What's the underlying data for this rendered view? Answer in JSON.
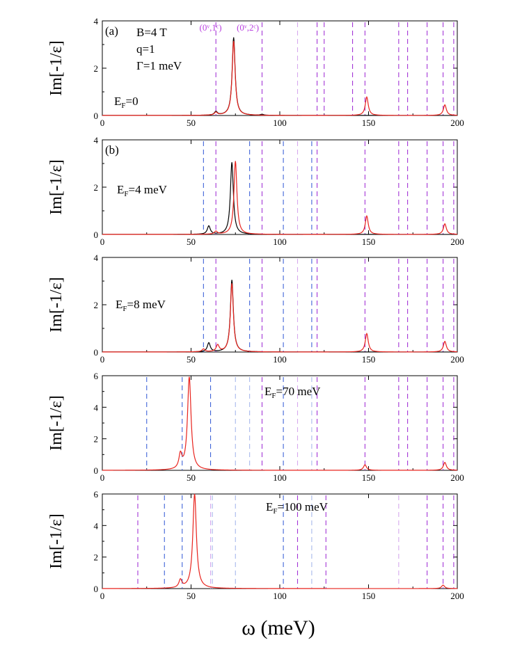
{
  "chart_data": {
    "type": "line",
    "xlabel": "ω (meV)",
    "ylabel": "Im[-1/ε]",
    "xlim": [
      0,
      200
    ],
    "xticks": [
      0,
      50,
      100,
      150,
      200
    ],
    "colors": {
      "black_curve": "#000000",
      "red_curve": "#e8231d",
      "blue_lines": "#3f63d8",
      "light_blue_lines": "#a7b8ec",
      "purple_lines": "#a335d6",
      "light_purple_lines": "#d6a9ee",
      "peak_label": "#b93fe0"
    },
    "panels": [
      {
        "panel_label": "(a)",
        "ylim": [
          0,
          4
        ],
        "yticks": [
          0,
          2,
          4
        ],
        "annotations": [
          "B=4 T",
          "q=1",
          "Γ=1 meV"
        ],
        "ef_label": {
          "main": "E",
          "sub": "F",
          "rest": "=0"
        },
        "peak_labels": [
          {
            "text": "(0ᵛ,1ᶜ)",
            "x": 61
          },
          {
            "text": "(0ᵛ,2ᶜ)",
            "x": 82
          }
        ],
        "lines_blue": [],
        "lines_light_blue": [],
        "lines_purple": [
          64,
          90,
          121,
          125,
          141,
          148,
          167,
          172,
          183,
          192,
          198
        ],
        "lines_light_purple": [
          110
        ],
        "black_peaks": [
          [
            64,
            0.15,
            1.0
          ],
          [
            74,
            3.3,
            1.0
          ],
          [
            90,
            0.04,
            1.0
          ]
        ],
        "red_peaks": [
          [
            64,
            0.12,
            1.0
          ],
          [
            74,
            3.15,
            1.0
          ],
          [
            149,
            0.78,
            1.0
          ],
          [
            193,
            0.45,
            1.0
          ]
        ]
      },
      {
        "panel_label": "(b)",
        "ylim": [
          0,
          4
        ],
        "yticks": [
          0,
          2,
          4
        ],
        "annotations": [],
        "ef_label": {
          "main": "E",
          "sub": "F",
          "rest": "=4 meV"
        },
        "peak_labels": [],
        "lines_blue": [
          57,
          83,
          102,
          118
        ],
        "lines_light_blue": [],
        "lines_purple": [
          64,
          90,
          121,
          148,
          167,
          172,
          183,
          192,
          198
        ],
        "lines_light_purple": [
          110
        ],
        "black_peaks": [
          [
            60,
            0.35,
            1.0
          ],
          [
            73,
            3.05,
            1.0
          ]
        ],
        "red_peaks": [
          [
            64,
            0.12,
            1.0
          ],
          [
            75,
            3.1,
            1.0
          ],
          [
            149,
            0.78,
            1.0
          ],
          [
            193,
            0.45,
            1.0
          ]
        ]
      },
      {
        "panel_label": "",
        "ylim": [
          0,
          4
        ],
        "yticks": [
          0,
          2,
          4
        ],
        "annotations": [],
        "ef_label": {
          "main": "E",
          "sub": "F",
          "rest": "=8 meV"
        },
        "peak_labels": [],
        "lines_blue": [
          57,
          83,
          102,
          118
        ],
        "lines_light_blue": [],
        "lines_purple": [
          64,
          90,
          121,
          148,
          167,
          172,
          183,
          192,
          198
        ],
        "lines_light_purple": [
          110
        ],
        "black_peaks": [
          [
            60,
            0.38,
            1.0
          ],
          [
            73,
            3.05,
            1.0
          ]
        ],
        "red_peaks": [
          [
            57,
            0.12,
            1.0
          ],
          [
            65,
            0.28,
            1.0
          ],
          [
            73,
            2.9,
            1.0
          ],
          [
            149,
            0.78,
            1.0
          ],
          [
            193,
            0.45,
            1.0
          ]
        ]
      },
      {
        "panel_label": "",
        "ylim": [
          0,
          6
        ],
        "yticks": [
          0,
          2,
          4,
          6
        ],
        "annotations": [],
        "ef_label": {
          "main": "E",
          "sub": "F",
          "rest": "=70 meV"
        },
        "peak_labels": [],
        "lines_blue": [
          25,
          45,
          61,
          102
        ],
        "lines_light_blue": [
          75,
          83,
          118
        ],
        "lines_purple": [
          90,
          121,
          148,
          167,
          172,
          183,
          192,
          198
        ],
        "lines_light_purple": [
          110
        ],
        "black_peaks": [],
        "red_peaks": [
          [
            44,
            0.9,
            1.0
          ],
          [
            49,
            5.9,
            1.2
          ],
          [
            148,
            0.35,
            1.0
          ],
          [
            193,
            0.5,
            1.0
          ]
        ]
      },
      {
        "panel_label": "",
        "ylim": [
          0,
          6
        ],
        "yticks": [
          0,
          2,
          4,
          6
        ],
        "annotations": [],
        "ef_label": {
          "main": "E",
          "sub": "F",
          "rest": "=100 meV"
        },
        "peak_labels": [],
        "lines_blue": [
          35,
          45,
          102
        ],
        "lines_light_blue": [
          62,
          75,
          118
        ],
        "lines_purple": [
          20,
          110,
          126,
          183,
          192,
          198
        ],
        "lines_light_purple": [
          61,
          167
        ],
        "black_peaks": [],
        "red_peaks": [
          [
            44,
            0.5,
            1.0
          ],
          [
            52,
            6.0,
            1.2
          ],
          [
            192,
            0.22,
            1.0
          ]
        ]
      }
    ]
  }
}
